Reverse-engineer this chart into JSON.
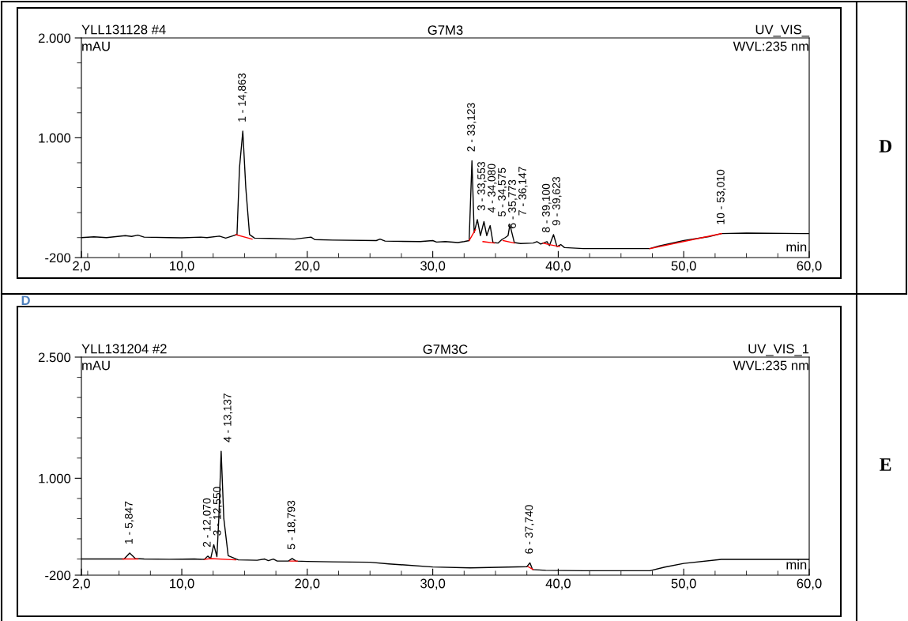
{
  "chart_data": [
    {
      "type": "line",
      "title": "G7M3",
      "xlabel": "min",
      "ylabel": "mAU",
      "xlim": [
        2,
        60
      ],
      "ylim": [
        -200,
        2000
      ],
      "xticks": [
        {
          "value": 2,
          "label": "2,0"
        },
        {
          "value": 2.5,
          "label": null
        },
        {
          "value": 5,
          "label": null
        },
        {
          "value": 7.5,
          "label": null
        },
        {
          "value": 10,
          "label": "10,0"
        },
        {
          "value": 12.5,
          "label": null
        },
        {
          "value": 15,
          "label": null
        },
        {
          "value": 17.5,
          "label": null
        },
        {
          "value": 20,
          "label": "20,0"
        },
        {
          "value": 22.5,
          "label": null
        },
        {
          "value": 25,
          "label": null
        },
        {
          "value": 27.5,
          "label": null
        },
        {
          "value": 30,
          "label": "30,0"
        },
        {
          "value": 32.5,
          "label": null
        },
        {
          "value": 35,
          "label": null
        },
        {
          "value": 37.5,
          "label": null
        },
        {
          "value": 40,
          "label": "40,0"
        },
        {
          "value": 42.5,
          "label": null
        },
        {
          "value": 45,
          "label": null
        },
        {
          "value": 47.5,
          "label": null
        },
        {
          "value": 50,
          "label": "50,0"
        },
        {
          "value": 52.5,
          "label": null
        },
        {
          "value": 55,
          "label": null
        },
        {
          "value": 57.5,
          "label": null
        },
        {
          "value": 60,
          "label": "60,0"
        }
      ],
      "yticks": [
        -200,
        {
          "value": 0,
          "label": null
        },
        {
          "value": 250,
          "label": null
        },
        {
          "value": 500,
          "label": null
        },
        {
          "value": 750,
          "label": null
        },
        {
          "value": 1000,
          "label": "1.000"
        },
        {
          "value": 1250,
          "label": null
        },
        {
          "value": 1500,
          "label": null
        },
        {
          "value": 1750,
          "label": null
        },
        {
          "value": 2000,
          "label": "2.000"
        }
      ],
      "series": [
        {
          "color": "#000000",
          "x": [
            2,
            3,
            4,
            5.5,
            6,
            6.5,
            7,
            9,
            10,
            11.5,
            12,
            13,
            13.5,
            14,
            14.4,
            14.6,
            14.863,
            15.1,
            15.4,
            15.8,
            17,
            19,
            20.3,
            20.6,
            22,
            25.5,
            25.8,
            26.2,
            29,
            30,
            30.3,
            31,
            32,
            32.5,
            32.9,
            33.123,
            33.3,
            33.553,
            33.8,
            34.08,
            34.3,
            34.575,
            34.8,
            35.2,
            35.5,
            35.773,
            36.0,
            36.147,
            36.5,
            37,
            38,
            38.3,
            38.6,
            39.1,
            39.3,
            39.623,
            39.9,
            40.2,
            40.5,
            42,
            45,
            47.3,
            48,
            50,
            52,
            53.01,
            55,
            60
          ],
          "values": [
            0,
            8,
            0,
            20,
            12,
            25,
            5,
            0,
            -2,
            5,
            0,
            15,
            -5,
            15,
            30,
            700,
            1066,
            500,
            30,
            -5,
            -8,
            -15,
            5,
            -20,
            -25,
            -30,
            -15,
            -35,
            -40,
            -30,
            -45,
            -40,
            -50,
            -40,
            -30,
            770,
            50,
            180,
            20,
            160,
            20,
            120,
            -50,
            -55,
            -20,
            0,
            20,
            130,
            -50,
            -60,
            -55,
            -40,
            -65,
            -40,
            -80,
            30,
            -90,
            -70,
            -100,
            -110,
            -110,
            -110,
            -85,
            -30,
            10,
            40,
            45,
            40
          ]
        },
        {
          "color": "#ff0000",
          "x": [
            14.3,
            15.6,
            15.65,
            32.9,
            33.4,
            33.45,
            34.0,
            34.9,
            34.95,
            35.6,
            36.5,
            36.55,
            38.8,
            39.3,
            40.1,
            40.15,
            47.3,
            53.01
          ],
          "values": [
            30,
            -15,
            null,
            -30,
            80,
            null,
            -40,
            -55,
            null,
            -30,
            -55,
            null,
            -55,
            -70,
            -90,
            null,
            -110,
            40
          ]
        }
      ],
      "annotations": [
        "YLL131128 #4",
        "UV_VIS_",
        "WVL:235 nm",
        "D",
        "D",
        {
          "text": "1 - 14,863",
          "x": 14.863,
          "y": 1066
        },
        {
          "text": "2 - 33,123",
          "x": 33.123,
          "y": 770
        },
        {
          "text": "3 - 33,553",
          "x": 33.553,
          "y": 180
        },
        {
          "text": "4 - 34,080",
          "x": 34.08,
          "y": 160
        },
        {
          "text": "5 - 34,575",
          "x": 34.575,
          "y": 120
        },
        {
          "text": "6 - 35,773",
          "x": 35.773,
          "y": 0
        },
        {
          "text": "7 - 36,147",
          "x": 36.147,
          "y": 130
        },
        {
          "text": "8 - 39,100",
          "x": 39.1,
          "y": -40
        },
        {
          "text": "9 - 39,623",
          "x": 39.623,
          "y": 30
        },
        {
          "text": "10 - 53,010",
          "x": 53.01,
          "y": 40
        }
      ]
    },
    {
      "type": "line",
      "title": "G7M3C",
      "xlabel": "min",
      "ylabel": "mAU",
      "xlim": [
        2,
        60
      ],
      "ylim": [
        -200,
        2500
      ],
      "xticks": [
        {
          "value": 2,
          "label": "2,0"
        },
        {
          "value": 2.5,
          "label": null
        },
        {
          "value": 5,
          "label": null
        },
        {
          "value": 7.5,
          "label": null
        },
        {
          "value": 10,
          "label": "10,0"
        },
        {
          "value": 12.5,
          "label": null
        },
        {
          "value": 15,
          "label": null
        },
        {
          "value": 17.5,
          "label": null
        },
        {
          "value": 20,
          "label": "20,0"
        },
        {
          "value": 22.5,
          "label": null
        },
        {
          "value": 25,
          "label": null
        },
        {
          "value": 27.5,
          "label": null
        },
        {
          "value": 30,
          "label": "30,0"
        },
        {
          "value": 32.5,
          "label": null
        },
        {
          "value": 35,
          "label": null
        },
        {
          "value": 37.5,
          "label": null
        },
        {
          "value": 40,
          "label": "40,0"
        },
        {
          "value": 42.5,
          "label": null
        },
        {
          "value": 45,
          "label": null
        },
        {
          "value": 47.5,
          "label": null
        },
        {
          "value": 50,
          "label": "50,0"
        },
        {
          "value": 52.5,
          "label": null
        },
        {
          "value": 55,
          "label": null
        },
        {
          "value": 57.5,
          "label": null
        },
        {
          "value": 60,
          "label": "60,0"
        }
      ],
      "yticks": [
        -200,
        {
          "value": 0,
          "label": null
        },
        {
          "value": 250,
          "label": null
        },
        {
          "value": 500,
          "label": null
        },
        {
          "value": 750,
          "label": null
        },
        {
          "value": 1000,
          "label": "1.000"
        },
        {
          "value": 1250,
          "label": null
        },
        {
          "value": 1500,
          "label": null
        },
        {
          "value": 1750,
          "label": null
        },
        {
          "value": 2000,
          "label": null
        },
        {
          "value": 2250,
          "label": null
        },
        {
          "value": 2500,
          "label": "2.500"
        }
      ],
      "series": [
        {
          "color": "#000000",
          "x": [
            2,
            4,
            5.4,
            5.847,
            6.3,
            7,
            9,
            11,
            11.8,
            12.07,
            12.3,
            12.55,
            12.8,
            12.95,
            13.137,
            13.35,
            13.7,
            14.5,
            16,
            16.6,
            16.9,
            17.3,
            17.6,
            18.5,
            18.793,
            19.1,
            20,
            22,
            25,
            26.5,
            30,
            33,
            37.5,
            37.74,
            37.95,
            39,
            42,
            47.3,
            48.5,
            50,
            53,
            60
          ],
          "values": [
            0,
            0,
            0,
            73,
            5,
            0,
            -3,
            0,
            -5,
            36,
            5,
            178,
            30,
            500,
            1335,
            500,
            40,
            -10,
            -15,
            0,
            -20,
            0,
            -25,
            -25,
            7,
            -25,
            -30,
            -35,
            -40,
            -60,
            -98,
            -110,
            -95,
            -47,
            -130,
            -140,
            -145,
            -145,
            -100,
            -55,
            -4,
            -5
          ]
        },
        {
          "color": "#ff0000",
          "x": [
            5.3,
            6.5,
            6.55,
            11.8,
            12.3,
            14.3,
            14.35,
            18.6,
            19.2,
            19.25,
            37.6,
            38.0
          ],
          "values": [
            0,
            0,
            null,
            -5,
            5,
            -10,
            null,
            -25,
            -25,
            null,
            -95,
            -130
          ]
        }
      ],
      "annotations": [
        "YLL131204 #2",
        "UV_VIS_1",
        "WVL:235 nm",
        "E",
        {
          "text": "1 - 5,847",
          "x": 5.847,
          "y": 73
        },
        {
          "text": "2 - 12,070",
          "x": 12.07,
          "y": 36
        },
        {
          "text": "3 - 12,550",
          "x": 12.55,
          "y": 178
        },
        {
          "text": "4 - 13,137",
          "x": 13.137,
          "y": 1335
        },
        {
          "text": "5 - 18,793",
          "x": 18.793,
          "y": 7
        },
        {
          "text": "6 - 37,740",
          "x": 37.74,
          "y": -47
        }
      ]
    }
  ]
}
